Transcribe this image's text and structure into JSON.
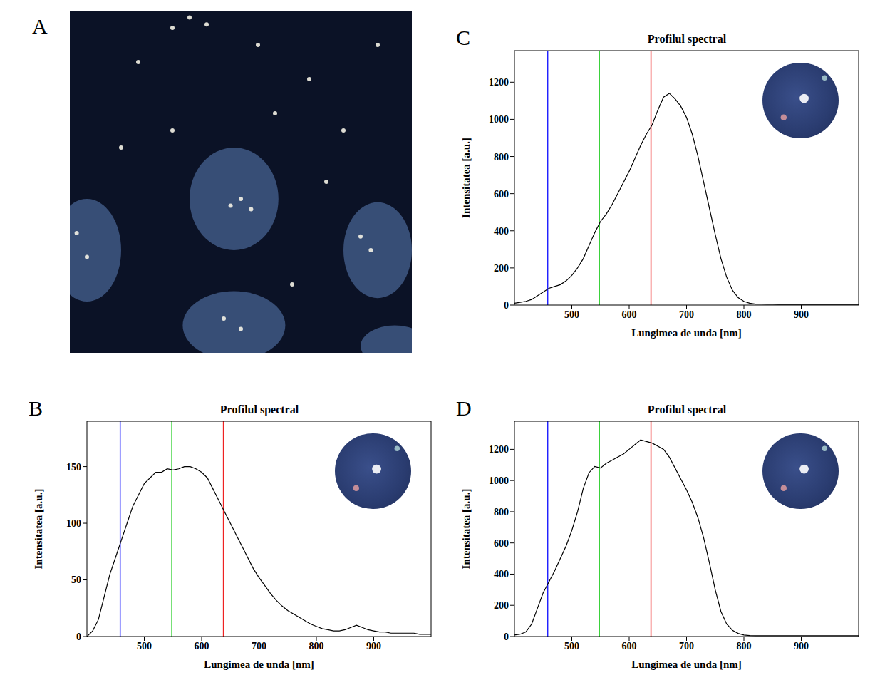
{
  "image_panel": {
    "panel_label": "A",
    "type": "image"
  },
  "chart_data": [
    {
      "panel_label": "B",
      "type": "line",
      "title": "Profilul spectral",
      "x_label": "Lungimea de unda [nm]",
      "y_label": "Intensitatea [a.u.]",
      "color": "#000000",
      "x": [
        400,
        410,
        420,
        430,
        440,
        450,
        460,
        470,
        480,
        490,
        500,
        510,
        520,
        530,
        540,
        550,
        560,
        570,
        580,
        590,
        600,
        610,
        620,
        630,
        640,
        650,
        660,
        670,
        680,
        690,
        700,
        710,
        720,
        730,
        740,
        750,
        760,
        770,
        780,
        790,
        800,
        810,
        820,
        830,
        840,
        850,
        860,
        870,
        880,
        890,
        900,
        910,
        920,
        930,
        940,
        950,
        960,
        970,
        980,
        990,
        1000
      ],
      "values": [
        0,
        5,
        15,
        35,
        55,
        70,
        85,
        100,
        115,
        125,
        135,
        140,
        145,
        145,
        148,
        147,
        148,
        150,
        150,
        148,
        145,
        140,
        130,
        120,
        110,
        100,
        90,
        80,
        70,
        60,
        52,
        45,
        38,
        32,
        27,
        23,
        20,
        17,
        14,
        11,
        9,
        7,
        6,
        5,
        5,
        6,
        8,
        10,
        8,
        6,
        5,
        4,
        4,
        3,
        3,
        3,
        3,
        3,
        2,
        2,
        2
      ],
      "xlim": [
        400,
        1000
      ],
      "ylim": [
        0,
        190
      ],
      "xticks": [
        500,
        600,
        700,
        800,
        900
      ],
      "yticks": [
        0,
        50,
        100,
        150
      ],
      "reference_lines": [
        {
          "x": 458,
          "color": "#2222ff"
        },
        {
          "x": 548,
          "color": "#22cc22"
        },
        {
          "x": 638,
          "color": "#ee2222"
        }
      ]
    },
    {
      "panel_label": "C",
      "type": "line",
      "title": "Profilul spectral",
      "x_label": "Lungimea de unda [nm]",
      "y_label": "Intensitatea [a.u.]",
      "color": "#000000",
      "x": [
        400,
        410,
        420,
        430,
        440,
        450,
        460,
        470,
        480,
        490,
        500,
        510,
        520,
        530,
        540,
        550,
        560,
        570,
        580,
        590,
        600,
        610,
        620,
        630,
        640,
        650,
        660,
        670,
        680,
        690,
        700,
        710,
        720,
        730,
        740,
        750,
        760,
        770,
        780,
        790,
        800,
        810,
        820,
        830,
        840,
        850,
        860,
        870,
        880,
        890,
        900,
        910,
        920,
        930,
        940,
        950,
        960,
        970,
        980,
        990,
        1000
      ],
      "values": [
        10,
        15,
        20,
        30,
        50,
        70,
        90,
        100,
        110,
        130,
        160,
        200,
        250,
        320,
        390,
        450,
        490,
        540,
        600,
        660,
        720,
        790,
        860,
        920,
        970,
        1050,
        1120,
        1140,
        1110,
        1070,
        1010,
        920,
        800,
        660,
        520,
        380,
        250,
        150,
        80,
        40,
        20,
        10,
        5,
        5,
        4,
        4,
        3,
        3,
        3,
        3,
        3,
        3,
        3,
        3,
        3,
        3,
        3,
        3,
        3,
        3,
        3
      ],
      "xlim": [
        400,
        1000
      ],
      "ylim": [
        0,
        1370
      ],
      "xticks": [
        500,
        600,
        700,
        800,
        900
      ],
      "yticks": [
        0,
        200,
        400,
        600,
        800,
        1000,
        1200
      ],
      "reference_lines": [
        {
          "x": 458,
          "color": "#2222ff"
        },
        {
          "x": 548,
          "color": "#22cc22"
        },
        {
          "x": 638,
          "color": "#ee2222"
        }
      ]
    },
    {
      "panel_label": "D",
      "type": "line",
      "title": "Profilul spectral",
      "x_label": "Lungimea de unda [nm]",
      "y_label": "Intensitatea [a.u.]",
      "color": "#000000",
      "x": [
        400,
        410,
        420,
        430,
        440,
        450,
        460,
        470,
        480,
        490,
        500,
        510,
        520,
        530,
        540,
        550,
        560,
        570,
        580,
        590,
        600,
        610,
        620,
        630,
        640,
        650,
        660,
        670,
        680,
        690,
        700,
        710,
        720,
        730,
        740,
        750,
        760,
        770,
        780,
        790,
        800,
        810,
        820,
        830,
        840,
        850,
        860,
        870,
        880,
        890,
        900,
        910,
        920,
        930,
        940,
        950,
        960,
        970,
        980,
        990,
        1000
      ],
      "values": [
        10,
        15,
        30,
        80,
        180,
        280,
        350,
        420,
        500,
        580,
        680,
        800,
        950,
        1050,
        1090,
        1080,
        1110,
        1130,
        1150,
        1170,
        1200,
        1230,
        1260,
        1250,
        1240,
        1220,
        1200,
        1150,
        1080,
        1010,
        940,
        860,
        760,
        630,
        470,
        300,
        160,
        80,
        40,
        20,
        10,
        6,
        5,
        5,
        5,
        5,
        5,
        5,
        5,
        5,
        5,
        5,
        5,
        5,
        5,
        5,
        5,
        5,
        5,
        5,
        5
      ],
      "xlim": [
        400,
        1000
      ],
      "ylim": [
        0,
        1380
      ],
      "xticks": [
        500,
        600,
        700,
        800,
        900
      ],
      "yticks": [
        0,
        200,
        400,
        600,
        800,
        1000,
        1200
      ],
      "reference_lines": [
        {
          "x": 458,
          "color": "#2222ff"
        },
        {
          "x": 548,
          "color": "#22cc22"
        },
        {
          "x": 638,
          "color": "#ee2222"
        }
      ]
    }
  ]
}
